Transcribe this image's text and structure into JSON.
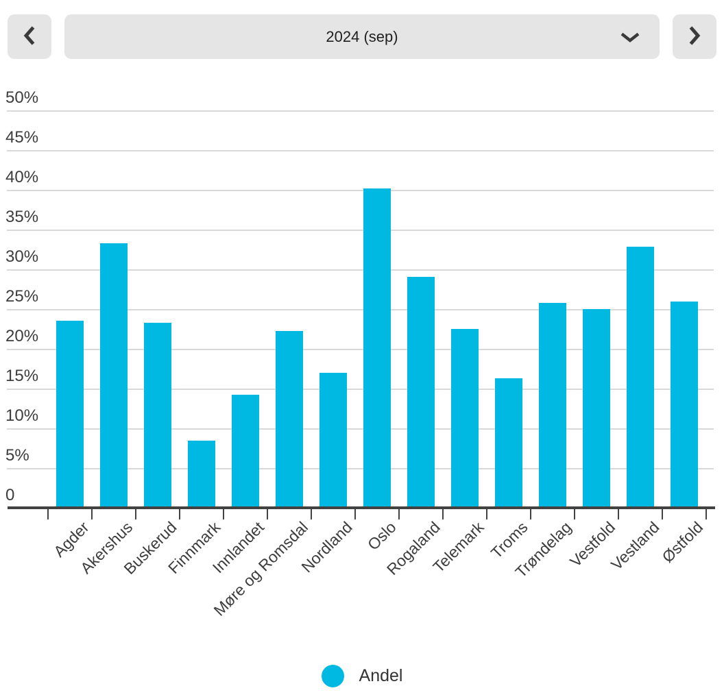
{
  "period_selector": {
    "value": "2024 (sep)",
    "prev_icon": "chevron-left",
    "next_icon": "chevron-right",
    "expand_icon": "chevron-down"
  },
  "chart_data": {
    "type": "bar",
    "title": "",
    "xlabel": "",
    "ylabel": "",
    "ylim": [
      0,
      50
    ],
    "grid": true,
    "legend_position": "bottom",
    "yticks": [
      0,
      5,
      10,
      15,
      20,
      25,
      30,
      35,
      40,
      45,
      50
    ],
    "ytick_labels": [
      "0",
      "5%",
      "10%",
      "15%",
      "20%",
      "25%",
      "30%",
      "35%",
      "40%",
      "45%",
      "50%"
    ],
    "categories": [
      "Agder",
      "Akershus",
      "Buskerud",
      "Finnmark",
      "Innlandet",
      "Møre og Romsdal",
      "Nordland",
      "Oslo",
      "Rogaland",
      "Telemark",
      "Troms",
      "Trøndelag",
      "Vestfold",
      "Vestland",
      "Østfold"
    ],
    "series": [
      {
        "name": "Andel",
        "values": [
          23.6,
          33.4,
          23.4,
          8.5,
          14.3,
          22.3,
          17.1,
          40.3,
          29.1,
          22.6,
          16.4,
          25.9,
          25.1,
          32.9,
          26.0
        ]
      }
    ]
  },
  "legend": {
    "label": "Andel"
  },
  "colors": {
    "bar": "#00b9e2",
    "gridline": "#d9d9d9",
    "axis": "#424242",
    "label_text": "#3d3d3d",
    "control_bg": "#e5e5e5",
    "control_text": "#1f1f1f",
    "chevron": "#3a3a3a",
    "legend_text": "#333333",
    "background": "#ffffff"
  }
}
